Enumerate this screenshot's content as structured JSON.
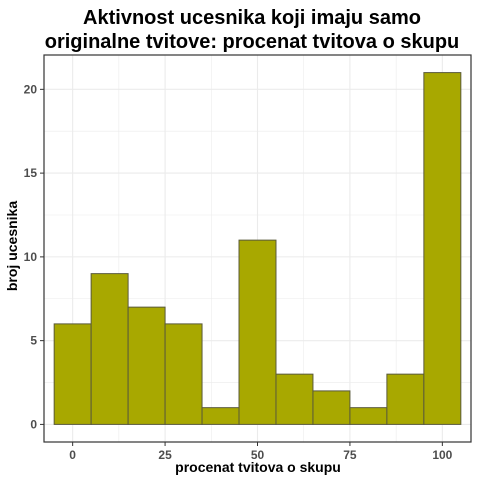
{
  "chart_data": {
    "type": "bar",
    "title_lines": [
      "Aktivnost ucesnika koji imaju samo",
      "originalne tvitove: procenat tvitova o skupu"
    ],
    "xlabel": "procenat tvitova o skupu",
    "ylabel": "broj ucesnika",
    "bin_width": 10,
    "bins": [
      {
        "center": 0,
        "count": 6
      },
      {
        "center": 10,
        "count": 9
      },
      {
        "center": 20,
        "count": 7
      },
      {
        "center": 30,
        "count": 6
      },
      {
        "center": 40,
        "count": 1
      },
      {
        "center": 50,
        "count": 11
      },
      {
        "center": 60,
        "count": 3
      },
      {
        "center": 70,
        "count": 2
      },
      {
        "center": 80,
        "count": 1
      },
      {
        "center": 90,
        "count": 3
      },
      {
        "center": 100,
        "count": 21
      }
    ],
    "xlim": [
      -7.75,
      107.75
    ],
    "ylim": [
      -1.05,
      22.05
    ],
    "x_ticks": [
      "0",
      "25",
      "50",
      "75",
      "100"
    ],
    "y_ticks": [
      "0",
      "5",
      "10",
      "15",
      "20"
    ],
    "grid": true,
    "colors": {
      "fill": "#a8a800",
      "border": "#5a5a3a",
      "grid": "#ebebeb",
      "panel_border": "#333333"
    }
  }
}
